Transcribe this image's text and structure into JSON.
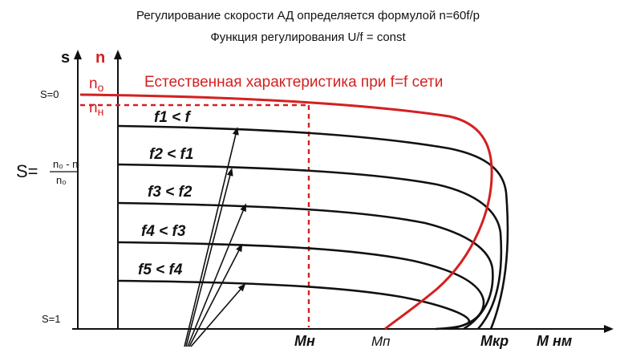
{
  "header": {
    "line1": "Регулирование скорости АД определяется формулой n=60f/p",
    "line2": "Функция регулирования U/f = const"
  },
  "axes": {
    "s_label": "s",
    "n_label": "n",
    "s0_label": "S=0",
    "s1_label": "S=1",
    "n0_label": "n",
    "n0_sub": "o",
    "nn_label": "n",
    "nn_sub": "н",
    "x_label": "М нм"
  },
  "slip_formula": {
    "prefix": "S=",
    "numerator": "n₀ - n",
    "denominator": "n₀"
  },
  "curves": {
    "natural_label": "Естественная характеристика при f=f сети",
    "labels": [
      "f1 < f",
      "f2 < f1",
      "f3 < f2",
      "f4 < f3",
      "f5 < f4"
    ]
  },
  "markers": {
    "mn": "Мн",
    "mp": "Мп",
    "mkr": "Мкр"
  },
  "colors": {
    "natural": "#d42020",
    "regulated": "#111111",
    "marker": "#d42020",
    "axis": "#111111"
  }
}
